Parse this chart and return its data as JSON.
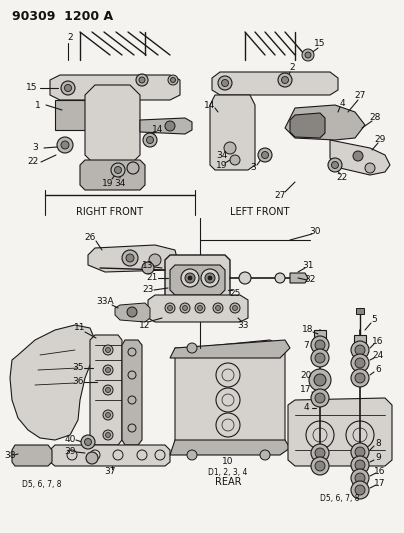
{
  "title": "90309  1200 A",
  "bg_color": "#f5f3f0",
  "line_color": "#1a1a1a",
  "text_color": "#111111",
  "gray_fill": "#b8b5b0",
  "light_gray": "#d5d2cd",
  "dark_gray": "#888580",
  "right_front_label": "RIGHT FRONT",
  "left_front_label": "LEFT FRONT",
  "rear_label": "REAR",
  "d5678_label": "D5, 6, 7, 8",
  "d1234_label": "D1, 2, 3, 4"
}
